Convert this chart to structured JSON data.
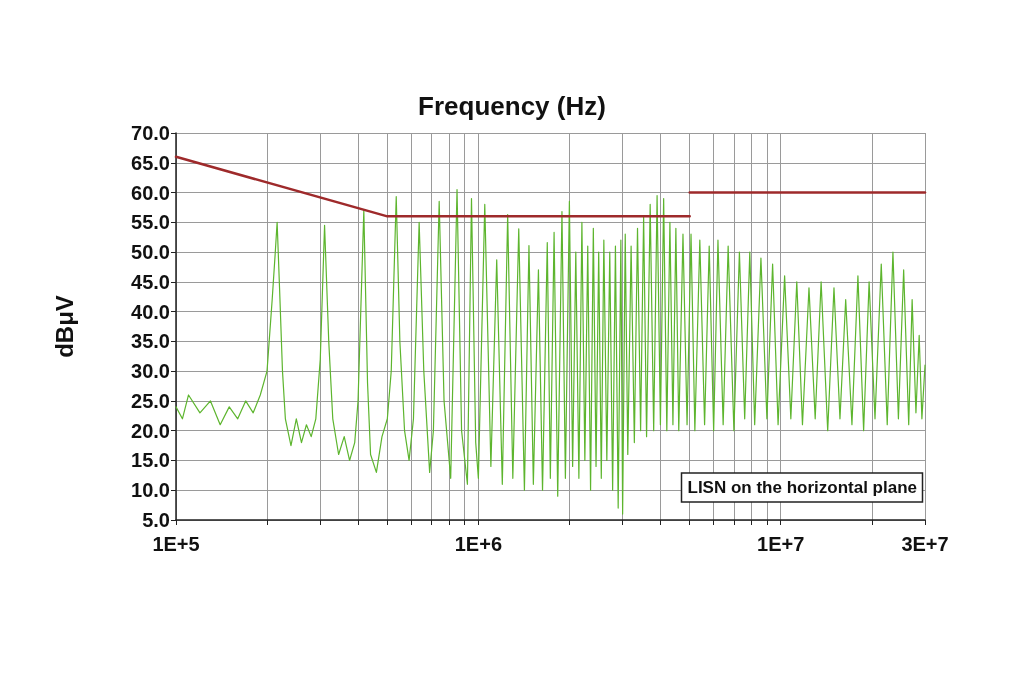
{
  "chart_data": {
    "type": "line",
    "title": "Frequency (Hz)",
    "ylabel": "dBμV",
    "annotations": [
      "LISN on the horizontal plane"
    ],
    "log": "x",
    "grid": true,
    "xlim": [
      100000,
      30000000
    ],
    "xticks": [
      {
        "value": 100000,
        "label": "1E+5"
      },
      {
        "value": 200000,
        "label": null
      },
      {
        "value": 300000,
        "label": null
      },
      {
        "value": 400000,
        "label": null
      },
      {
        "value": 500000,
        "label": null
      },
      {
        "value": 600000,
        "label": null
      },
      {
        "value": 700000,
        "label": null
      },
      {
        "value": 800000,
        "label": null
      },
      {
        "value": 900000,
        "label": null
      },
      {
        "value": 1000000,
        "label": "1E+6"
      },
      {
        "value": 2000000,
        "label": null
      },
      {
        "value": 3000000,
        "label": null
      },
      {
        "value": 4000000,
        "label": null
      },
      {
        "value": 5000000,
        "label": null
      },
      {
        "value": 6000000,
        "label": null
      },
      {
        "value": 7000000,
        "label": null
      },
      {
        "value": 8000000,
        "label": null
      },
      {
        "value": 9000000,
        "label": null
      },
      {
        "value": 10000000,
        "label": "1E+7"
      },
      {
        "value": 20000000,
        "label": null
      },
      {
        "value": 30000000,
        "label": "3E+7"
      }
    ],
    "ylim": [
      5,
      70
    ],
    "yticks": [
      {
        "value": 5,
        "label": "5.0"
      },
      {
        "value": 10,
        "label": "10.0"
      },
      {
        "value": 15,
        "label": "15.0"
      },
      {
        "value": 20,
        "label": "20.0"
      },
      {
        "value": 25,
        "label": "25.0"
      },
      {
        "value": 30,
        "label": "30.0"
      },
      {
        "value": 35,
        "label": "35.0"
      },
      {
        "value": 40,
        "label": "40.0"
      },
      {
        "value": 45,
        "label": "45.0"
      },
      {
        "value": 50,
        "label": "50.0"
      },
      {
        "value": 55,
        "label": "55.0"
      },
      {
        "value": 60,
        "label": "60.0"
      },
      {
        "value": 65,
        "label": "65.0"
      },
      {
        "value": 70,
        "label": "70.0"
      }
    ],
    "series": [
      {
        "color": "#5db52e",
        "x": [
          100000,
          105000,
          110000,
          120000,
          130000,
          140000,
          150000,
          160000,
          170000,
          180000,
          190000,
          200000,
          208000,
          213000,
          216000,
          220000,
          225000,
          230000,
          240000,
          250000,
          260000,
          270000,
          280000,
          290000,
          300000,
          310000,
          320000,
          330000,
          345000,
          360000,
          375000,
          390000,
          400000,
          418000,
          430000,
          440000,
          460000,
          480000,
          500000,
          515000,
          535000,
          550000,
          570000,
          590000,
          610000,
          637000,
          660000,
          690000,
          710000,
          742000,
          770000,
          810000,
          850000,
          880000,
          920000,
          949000,
          980000,
          1000000,
          1050000,
          1100000,
          1150000,
          1200000,
          1250000,
          1300000,
          1360000,
          1420000,
          1470000,
          1520000,
          1580000,
          1630000,
          1690000,
          1730000,
          1780000,
          1830000,
          1890000,
          1940000,
          2000000,
          2050000,
          2100000,
          2150000,
          2200000,
          2250000,
          2300000,
          2350000,
          2400000,
          2450000,
          2500000,
          2550000,
          2600000,
          2660000,
          2720000,
          2780000,
          2840000,
          2900000,
          2960000,
          3000000,
          3060000,
          3120000,
          3200000,
          3280000,
          3360000,
          3440000,
          3520000,
          3600000,
          3700000,
          3800000,
          3900000,
          4000000,
          4100000,
          4200000,
          4300000,
          4400000,
          4500000,
          4600000,
          4750000,
          4900000,
          5050000,
          5200000,
          5400000,
          5600000,
          5800000,
          6000000,
          6200000,
          6450000,
          6700000,
          7000000,
          7300000,
          7600000,
          7900000,
          8200000,
          8600000,
          9000000,
          9400000,
          9800000,
          10300000,
          10800000,
          11300000,
          11800000,
          12400000,
          13000000,
          13600000,
          14300000,
          15000000,
          15700000,
          16400000,
          17200000,
          18000000,
          18800000,
          19600000,
          20500000,
          21500000,
          22500000,
          23500000,
          24500000,
          25500000,
          26500000,
          27200000,
          28000000,
          28700000,
          29300000,
          30000000
        ],
        "values": [
          24,
          22,
          26,
          23,
          25,
          21,
          24,
          22,
          25,
          23,
          26,
          30,
          42,
          50,
          55,
          44,
          30,
          22,
          17.5,
          22,
          18,
          21,
          19,
          22,
          32,
          54.5,
          35,
          22,
          16,
          19,
          15,
          18,
          25,
          57,
          28,
          16,
          13,
          19,
          22,
          30,
          59.3,
          35,
          20,
          15,
          22,
          55,
          30,
          13,
          20,
          58.5,
          25,
          12,
          60.5,
          20,
          11,
          59,
          18,
          12,
          58,
          14,
          48.7,
          11,
          56.3,
          12,
          53.9,
          10,
          51.1,
          11,
          47,
          10,
          51.6,
          12,
          53.3,
          9,
          56.8,
          12,
          58.5,
          14,
          50,
          12,
          55,
          15,
          51,
          10,
          54,
          14,
          50,
          12,
          52,
          15,
          50,
          10,
          51,
          7,
          52,
          6,
          53,
          16,
          51,
          18,
          54,
          20,
          56,
          19,
          58,
          20,
          59.5,
          21,
          59,
          20,
          55,
          21,
          54,
          20,
          53,
          21,
          53,
          20,
          52,
          21,
          51,
          20,
          52,
          21,
          51,
          20,
          50,
          22,
          50,
          21,
          49,
          22,
          48,
          21,
          46,
          22,
          45,
          21,
          44,
          22,
          45,
          20,
          44,
          22,
          42,
          21,
          46,
          20,
          45,
          22,
          48,
          21,
          50,
          22,
          47,
          21,
          42,
          23,
          36,
          22,
          31
        ]
      },
      {
        "color": "#9e2a2b",
        "x": [
          100000,
          500000,
          5000000
        ],
        "values": [
          66,
          56,
          56
        ]
      },
      {
        "color": "#9e2a2b",
        "x": [
          5000000,
          30000000
        ],
        "values": [
          60,
          60
        ]
      }
    ]
  }
}
